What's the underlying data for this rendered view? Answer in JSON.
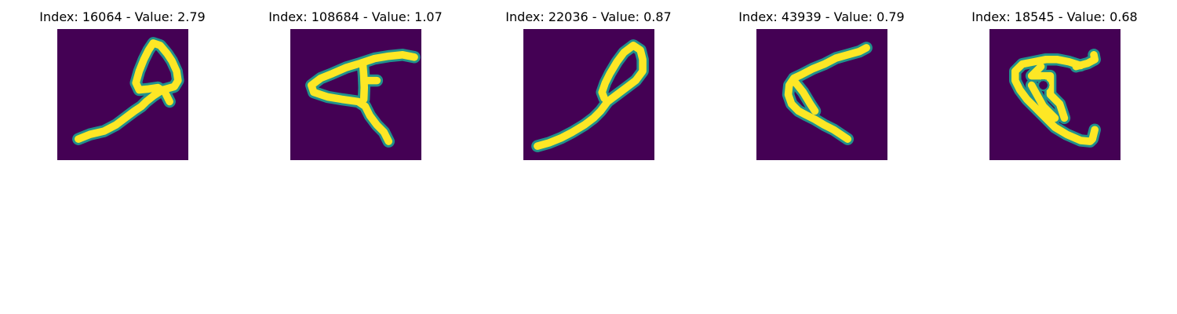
{
  "figure": {
    "colors": {
      "background": "#440154",
      "stroke": "#fde725",
      "edge": "#21918c"
    },
    "panels": [
      {
        "title": "Index: 16064 - Value: 2.79",
        "strokes": [
          [
            [
              4.5,
              23.5
            ],
            [
              7,
              22.5
            ],
            [
              10,
              21.8
            ],
            [
              12.5,
              20.5
            ],
            [
              14.5,
              19
            ],
            [
              16.5,
              17.5
            ],
            [
              18,
              16.5
            ],
            [
              19,
              15.5
            ],
            [
              20.5,
              14.3
            ],
            [
              22.5,
              13
            ],
            [
              25,
              12.3
            ],
            [
              25.8,
              11
            ],
            [
              25.5,
              9
            ],
            [
              24.5,
              6.8
            ],
            [
              23.5,
              5.3
            ],
            [
              22,
              3.5
            ],
            [
              20.5,
              3
            ],
            [
              19.5,
              4.5
            ],
            [
              18.5,
              6.5
            ],
            [
              17.5,
              9
            ],
            [
              16.8,
              11.5
            ],
            [
              17.5,
              13
            ],
            [
              19.5,
              12.8
            ],
            [
              21.5,
              12.5
            ],
            [
              23,
              13.5
            ],
            [
              24,
              15.5
            ]
          ]
        ]
      },
      {
        "title": "Index: 108684 - Value: 1.07",
        "strokes": [
          [
            [
              26.5,
              6
            ],
            [
              24,
              5.5
            ],
            [
              21,
              5.8
            ],
            [
              18,
              6.3
            ],
            [
              15,
              7.3
            ],
            [
              12,
              8.2
            ],
            [
              9,
              9.5
            ],
            [
              6.5,
              10.5
            ],
            [
              4.5,
              12
            ],
            [
              5,
              13.5
            ],
            [
              8,
              14.5
            ],
            [
              11,
              15
            ],
            [
              14.5,
              15.5
            ],
            [
              16,
              16.5
            ],
            [
              17,
              18.5
            ],
            [
              18.5,
              20.5
            ],
            [
              20,
              22
            ],
            [
              21,
              24
            ]
          ],
          [
            [
              15.5,
              7.5
            ],
            [
              15.7,
              10
            ],
            [
              15.8,
              12.5
            ],
            [
              15.7,
              15
            ]
          ],
          [
            [
              16,
              11
            ],
            [
              18.5,
              11
            ]
          ]
        ]
      },
      {
        "title": "Index: 22036 - Value: 0.87",
        "strokes": [
          [
            [
              3,
              25
            ],
            [
              5.5,
              24.3
            ],
            [
              8,
              23.3
            ],
            [
              10.5,
              22
            ],
            [
              13,
              20.5
            ],
            [
              15,
              19
            ],
            [
              16.5,
              17.5
            ],
            [
              18,
              15.5
            ],
            [
              20,
              14
            ],
            [
              22,
              12.5
            ],
            [
              24,
              11
            ],
            [
              25.5,
              9
            ],
            [
              25.5,
              6.5
            ],
            [
              25,
              4.5
            ],
            [
              23.5,
              3.5
            ],
            [
              21.5,
              5
            ],
            [
              20,
              7
            ],
            [
              18.5,
              9.5
            ],
            [
              17.5,
              11.5
            ],
            [
              16.8,
              13.5
            ],
            [
              17.3,
              14.8
            ]
          ]
        ]
      },
      {
        "title": "Index: 43939 - Value: 0.79",
        "strokes": [
          [
            [
              23.5,
              4
            ],
            [
              22,
              4.8
            ],
            [
              19.5,
              5.5
            ],
            [
              17,
              6.2
            ],
            [
              14.5,
              7.5
            ],
            [
              12,
              8.5
            ],
            [
              9.5,
              9.8
            ],
            [
              8,
              10.5
            ],
            [
              7,
              12
            ],
            [
              6.8,
              14
            ],
            [
              7.5,
              16
            ],
            [
              9,
              17.5
            ],
            [
              10.5,
              18.3
            ],
            [
              12.5,
              19.3
            ],
            [
              14.5,
              20.5
            ],
            [
              16.5,
              21.5
            ],
            [
              18,
              22.5
            ],
            [
              19.5,
              23.5
            ]
          ],
          [
            [
              8,
              11
            ],
            [
              10,
              13.5
            ],
            [
              11.5,
              16
            ],
            [
              12.5,
              17.5
            ]
          ]
        ]
      },
      {
        "title": "Index: 18545 - Value: 0.68",
        "strokes": [
          [
            [
              19.5,
              7.8
            ],
            [
              17,
              7
            ],
            [
              14.5,
              6.5
            ],
            [
              12,
              6.5
            ],
            [
              9.5,
              7
            ],
            [
              7,
              7.5
            ],
            [
              5.5,
              9
            ],
            [
              5.5,
              11
            ],
            [
              6.5,
              13
            ],
            [
              8,
              15
            ],
            [
              10,
              17
            ],
            [
              12,
              19
            ],
            [
              14,
              21
            ],
            [
              16.5,
              22.5
            ],
            [
              19.5,
              23.8
            ],
            [
              21.5,
              24
            ],
            [
              22,
              23.5
            ],
            [
              22.5,
              21.5
            ]
          ],
          [
            [
              9,
              12
            ],
            [
              11.5,
              16.5
            ],
            [
              14,
              19
            ]
          ],
          [
            [
              11,
              8
            ],
            [
              9,
              10
            ],
            [
              13,
              10
            ],
            [
              13,
              14
            ],
            [
              15,
              16
            ],
            [
              16,
              19
            ]
          ],
          [
            [
              18.5,
              8
            ],
            [
              21,
              7.3
            ],
            [
              22.5,
              6.5
            ],
            [
              22.3,
              5.5
            ]
          ]
        ],
        "holes": [
          [
            11.5,
            12,
            1.1
          ]
        ]
      }
    ]
  }
}
